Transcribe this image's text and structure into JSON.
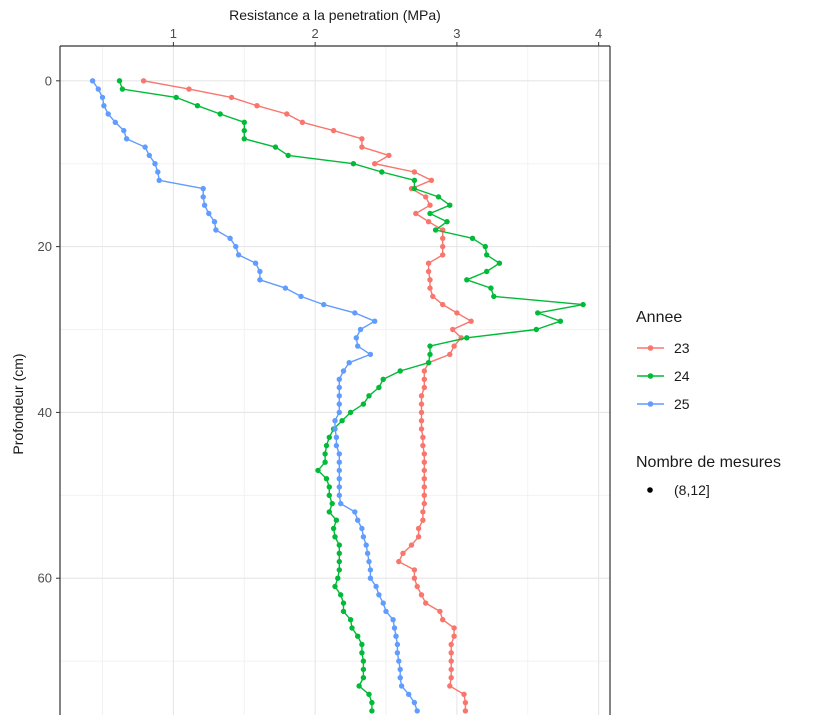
{
  "chart_data": {
    "type": "line",
    "title": "",
    "xlabel": "Resistance a la penetration (MPa)",
    "ylabel": "Profondeur (cm)",
    "xlim": [
      0.2,
      4.08
    ],
    "ylim": [
      -4.2,
      76.5
    ],
    "y_reversed": true,
    "x_axis_position": "top",
    "x_ticks": [
      1,
      2,
      3,
      4
    ],
    "y_ticks": [
      0,
      20,
      40,
      60
    ],
    "grid": true,
    "legend": {
      "title": "Annee",
      "placement": "right",
      "entries": [
        "23",
        "24",
        "25"
      ]
    },
    "size_legend": {
      "title": "Nombre de mesures",
      "entries": [
        "(8,12]"
      ]
    },
    "series": [
      {
        "name": "23",
        "color": "#F8766D",
        "points": [
          [
            0.79,
            0
          ],
          [
            1.11,
            1
          ],
          [
            1.41,
            2
          ],
          [
            1.59,
            3
          ],
          [
            1.8,
            4
          ],
          [
            1.91,
            5
          ],
          [
            2.13,
            6
          ],
          [
            2.33,
            7
          ],
          [
            2.33,
            8
          ],
          [
            2.52,
            9
          ],
          [
            2.42,
            10
          ],
          [
            2.7,
            11
          ],
          [
            2.82,
            12
          ],
          [
            2.68,
            13
          ],
          [
            2.78,
            14
          ],
          [
            2.81,
            15
          ],
          [
            2.71,
            16
          ],
          [
            2.8,
            17
          ],
          [
            2.9,
            18
          ],
          [
            2.9,
            19
          ],
          [
            2.9,
            20
          ],
          [
            2.9,
            21
          ],
          [
            2.8,
            22
          ],
          [
            2.8,
            23
          ],
          [
            2.81,
            24
          ],
          [
            2.81,
            25
          ],
          [
            2.83,
            26
          ],
          [
            2.9,
            27
          ],
          [
            3.0,
            28
          ],
          [
            3.1,
            29
          ],
          [
            2.97,
            30
          ],
          [
            3.03,
            31
          ],
          [
            2.98,
            32
          ],
          [
            2.95,
            33
          ],
          [
            2.8,
            34
          ],
          [
            2.77,
            35
          ],
          [
            2.77,
            36
          ],
          [
            2.77,
            37
          ],
          [
            2.75,
            38
          ],
          [
            2.75,
            39
          ],
          [
            2.75,
            40
          ],
          [
            2.75,
            41
          ],
          [
            2.75,
            42
          ],
          [
            2.76,
            43
          ],
          [
            2.76,
            44
          ],
          [
            2.77,
            45
          ],
          [
            2.77,
            46
          ],
          [
            2.77,
            47
          ],
          [
            2.77,
            48
          ],
          [
            2.77,
            49
          ],
          [
            2.77,
            50
          ],
          [
            2.77,
            51
          ],
          [
            2.76,
            52
          ],
          [
            2.76,
            53
          ],
          [
            2.73,
            54
          ],
          [
            2.73,
            55
          ],
          [
            2.68,
            56
          ],
          [
            2.62,
            57
          ],
          [
            2.59,
            58
          ],
          [
            2.7,
            59
          ],
          [
            2.7,
            60
          ],
          [
            2.72,
            61
          ],
          [
            2.75,
            62
          ],
          [
            2.78,
            63
          ],
          [
            2.88,
            64
          ],
          [
            2.9,
            65
          ],
          [
            2.98,
            66
          ],
          [
            2.98,
            67
          ],
          [
            2.96,
            68
          ],
          [
            2.96,
            69
          ],
          [
            2.96,
            70
          ],
          [
            2.96,
            71
          ],
          [
            2.96,
            72
          ],
          [
            2.95,
            73
          ],
          [
            3.05,
            74
          ],
          [
            3.06,
            75
          ],
          [
            3.06,
            76
          ]
        ]
      },
      {
        "name": "24",
        "color": "#00BA38",
        "points": [
          [
            0.62,
            0
          ],
          [
            0.64,
            1
          ],
          [
            1.02,
            2
          ],
          [
            1.17,
            3
          ],
          [
            1.33,
            4
          ],
          [
            1.5,
            5
          ],
          [
            1.5,
            6
          ],
          [
            1.5,
            7
          ],
          [
            1.72,
            8
          ],
          [
            1.81,
            9
          ],
          [
            2.27,
            10
          ],
          [
            2.47,
            11
          ],
          [
            2.7,
            12
          ],
          [
            2.7,
            13
          ],
          [
            2.87,
            14
          ],
          [
            2.95,
            15
          ],
          [
            2.81,
            16
          ],
          [
            2.93,
            17
          ],
          [
            2.85,
            18
          ],
          [
            3.11,
            19
          ],
          [
            3.2,
            20
          ],
          [
            3.21,
            21
          ],
          [
            3.3,
            22
          ],
          [
            3.21,
            23
          ],
          [
            3.07,
            24
          ],
          [
            3.24,
            25
          ],
          [
            3.26,
            26
          ],
          [
            3.89,
            27
          ],
          [
            3.57,
            28
          ],
          [
            3.73,
            29
          ],
          [
            3.56,
            30
          ],
          [
            3.07,
            31
          ],
          [
            2.81,
            32
          ],
          [
            2.81,
            33
          ],
          [
            2.8,
            34
          ],
          [
            2.6,
            35
          ],
          [
            2.48,
            36
          ],
          [
            2.45,
            37
          ],
          [
            2.38,
            38
          ],
          [
            2.34,
            39
          ],
          [
            2.25,
            40
          ],
          [
            2.19,
            41
          ],
          [
            2.13,
            42
          ],
          [
            2.1,
            43
          ],
          [
            2.08,
            44
          ],
          [
            2.07,
            45
          ],
          [
            2.07,
            46
          ],
          [
            2.02,
            47
          ],
          [
            2.08,
            48
          ],
          [
            2.1,
            49
          ],
          [
            2.1,
            50
          ],
          [
            2.12,
            51
          ],
          [
            2.1,
            52
          ],
          [
            2.15,
            53
          ],
          [
            2.13,
            54
          ],
          [
            2.14,
            55
          ],
          [
            2.17,
            56
          ],
          [
            2.17,
            57
          ],
          [
            2.17,
            58
          ],
          [
            2.17,
            59
          ],
          [
            2.16,
            60
          ],
          [
            2.14,
            61
          ],
          [
            2.18,
            62
          ],
          [
            2.2,
            63
          ],
          [
            2.2,
            64
          ],
          [
            2.25,
            65
          ],
          [
            2.26,
            66
          ],
          [
            2.3,
            67
          ],
          [
            2.33,
            68
          ],
          [
            2.33,
            69
          ],
          [
            2.34,
            70
          ],
          [
            2.34,
            71
          ],
          [
            2.34,
            72
          ],
          [
            2.31,
            73
          ],
          [
            2.38,
            74
          ],
          [
            2.4,
            75
          ],
          [
            2.4,
            76
          ]
        ]
      },
      {
        "name": "25",
        "color": "#619CFF",
        "points": [
          [
            0.43,
            0
          ],
          [
            0.47,
            1
          ],
          [
            0.5,
            2
          ],
          [
            0.51,
            3
          ],
          [
            0.54,
            4
          ],
          [
            0.59,
            5
          ],
          [
            0.65,
            6
          ],
          [
            0.67,
            7
          ],
          [
            0.8,
            8
          ],
          [
            0.83,
            9
          ],
          [
            0.87,
            10
          ],
          [
            0.89,
            11
          ],
          [
            0.9,
            12
          ],
          [
            1.21,
            13
          ],
          [
            1.21,
            14
          ],
          [
            1.22,
            15
          ],
          [
            1.25,
            16
          ],
          [
            1.29,
            17
          ],
          [
            1.3,
            18
          ],
          [
            1.4,
            19
          ],
          [
            1.44,
            20
          ],
          [
            1.46,
            21
          ],
          [
            1.58,
            22
          ],
          [
            1.61,
            23
          ],
          [
            1.61,
            24
          ],
          [
            1.79,
            25
          ],
          [
            1.9,
            26
          ],
          [
            2.06,
            27
          ],
          [
            2.28,
            28
          ],
          [
            2.42,
            29
          ],
          [
            2.32,
            30
          ],
          [
            2.29,
            31
          ],
          [
            2.3,
            32
          ],
          [
            2.39,
            33
          ],
          [
            2.24,
            34
          ],
          [
            2.2,
            35
          ],
          [
            2.17,
            36
          ],
          [
            2.17,
            37
          ],
          [
            2.17,
            38
          ],
          [
            2.17,
            39
          ],
          [
            2.17,
            40
          ],
          [
            2.14,
            41
          ],
          [
            2.14,
            42
          ],
          [
            2.15,
            43
          ],
          [
            2.15,
            44
          ],
          [
            2.17,
            45
          ],
          [
            2.17,
            46
          ],
          [
            2.17,
            47
          ],
          [
            2.17,
            48
          ],
          [
            2.17,
            49
          ],
          [
            2.17,
            50
          ],
          [
            2.18,
            51
          ],
          [
            2.28,
            52
          ],
          [
            2.3,
            53
          ],
          [
            2.33,
            54
          ],
          [
            2.34,
            55
          ],
          [
            2.36,
            56
          ],
          [
            2.37,
            57
          ],
          [
            2.38,
            58
          ],
          [
            2.39,
            59
          ],
          [
            2.39,
            60
          ],
          [
            2.43,
            61
          ],
          [
            2.45,
            62
          ],
          [
            2.48,
            63
          ],
          [
            2.5,
            64
          ],
          [
            2.55,
            65
          ],
          [
            2.56,
            66
          ],
          [
            2.57,
            67
          ],
          [
            2.58,
            68
          ],
          [
            2.58,
            69
          ],
          [
            2.59,
            70
          ],
          [
            2.6,
            71
          ],
          [
            2.6,
            72
          ],
          [
            2.61,
            73
          ],
          [
            2.66,
            74
          ],
          [
            2.7,
            75
          ],
          [
            2.72,
            76
          ]
        ]
      }
    ]
  }
}
